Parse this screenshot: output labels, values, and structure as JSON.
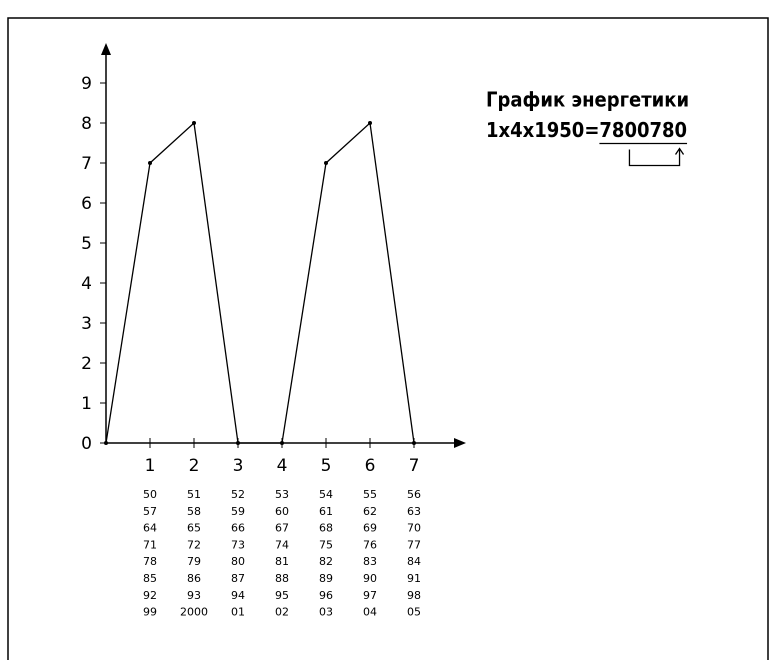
{
  "chart_data": {
    "type": "line",
    "x": [
      0,
      1,
      2,
      3,
      4,
      5,
      6,
      7
    ],
    "values": [
      0,
      7,
      8,
      0,
      0,
      7,
      8,
      0
    ],
    "color": "#000000",
    "xlim": [
      0,
      8
    ],
    "xticks": [
      1,
      2,
      3,
      4,
      5,
      6,
      7
    ],
    "ylim": [
      0,
      10
    ],
    "yticks": [
      0,
      1,
      2,
      3,
      4,
      5,
      6,
      7,
      8,
      9
    ],
    "title": "График энергетики",
    "formula": {
      "prefix": "1x4x1950=",
      "first": "7800",
      "second": "780"
    }
  },
  "year_table": {
    "columns": [
      [
        "50",
        "57",
        "64",
        "71",
        "78",
        "85",
        "92",
        "99"
      ],
      [
        "51",
        "58",
        "65",
        "72",
        "79",
        "86",
        "93",
        "2000"
      ],
      [
        "52",
        "59",
        "66",
        "73",
        "80",
        "87",
        "94",
        "01"
      ],
      [
        "53",
        "60",
        "67",
        "74",
        "81",
        "88",
        "95",
        "02"
      ],
      [
        "54",
        "61",
        "68",
        "75",
        "82",
        "89",
        "96",
        "03"
      ],
      [
        "55",
        "62",
        "69",
        "76",
        "83",
        "90",
        "97",
        "04"
      ],
      [
        "56",
        "63",
        "70",
        "77",
        "84",
        "91",
        "98",
        "05"
      ]
    ]
  }
}
